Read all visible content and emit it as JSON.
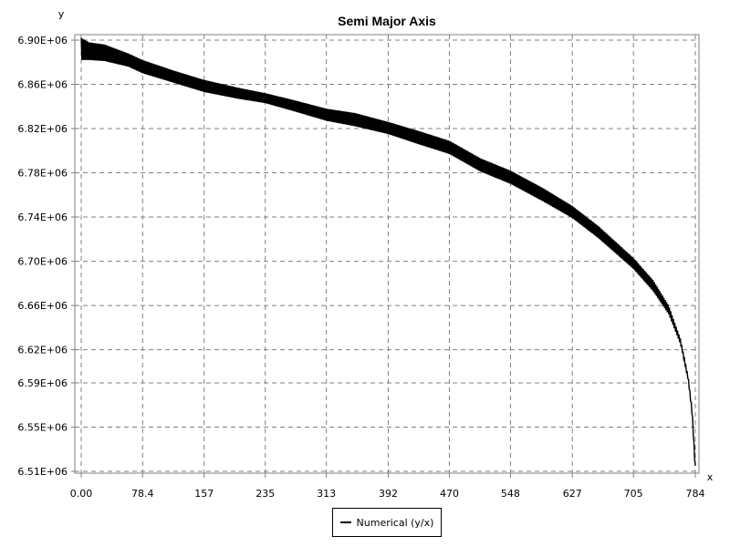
{
  "chart_data": {
    "type": "line",
    "title": "Semi Major Axis",
    "xlabel": "x",
    "ylabel": "y",
    "xlim": [
      0,
      784
    ],
    "ylim": [
      6510000,
      6900000
    ],
    "x_ticks": [
      0,
      78.4,
      157,
      235,
      313,
      392,
      470,
      548,
      627,
      705,
      784
    ],
    "x_tick_labels": [
      "0.00",
      "78.4",
      "157",
      "235",
      "313",
      "392",
      "470",
      "548",
      "627",
      "705",
      "784"
    ],
    "y_ticks": [
      6900000,
      6860000,
      6820000,
      6780000,
      6740000,
      6700000,
      6660000,
      6620000,
      6590000,
      6550000,
      6510000
    ],
    "y_tick_labels": [
      "6.90E+06",
      "6.86E+06",
      "6.82E+06",
      "6.78E+06",
      "6.74E+06",
      "6.70E+06",
      "6.66E+06",
      "6.62E+06",
      "6.59E+06",
      "6.55E+06",
      "6.51E+06"
    ],
    "grid": true,
    "legend_position": "bottom-center",
    "series": [
      {
        "name": "Numerical (y/x)",
        "color": "#000000",
        "oscillating": true,
        "x": [
          0,
          10,
          30,
          60,
          78.4,
          120,
          157,
          200,
          235,
          270,
          313,
          350,
          392,
          430,
          470,
          510,
          548,
          590,
          627,
          660,
          705,
          730,
          750,
          765,
          775,
          780,
          784
        ],
        "y_upper": [
          6902000,
          6898000,
          6896000,
          6888000,
          6882000,
          6872000,
          6864000,
          6857000,
          6852000,
          6846000,
          6838000,
          6834000,
          6826000,
          6818000,
          6809000,
          6793000,
          6782000,
          6766000,
          6750000,
          6732000,
          6703000,
          6683000,
          6660000,
          6630000,
          6595000,
          6565000,
          6515000
        ],
        "y_lower": [
          6882000,
          6882000,
          6881000,
          6876000,
          6870000,
          6861000,
          6853000,
          6847000,
          6843000,
          6836000,
          6827000,
          6822000,
          6815000,
          6806000,
          6797000,
          6781000,
          6770000,
          6754000,
          6739000,
          6721000,
          6693000,
          6673000,
          6652000,
          6625000,
          6592000,
          6560000,
          6510000
        ]
      }
    ]
  }
}
